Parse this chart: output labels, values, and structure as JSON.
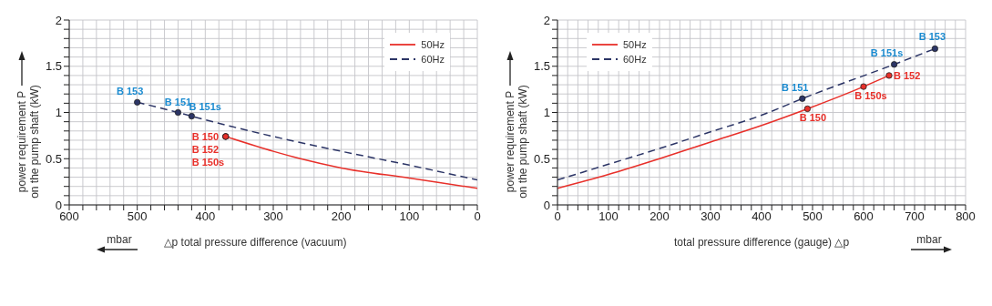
{
  "chart_data": [
    {
      "type": "line",
      "xlabel": "△p total pressure difference (vacuum)",
      "ylabel": "power requirement P\non the pump shaft (kW)",
      "xlim": [
        600,
        0
      ],
      "ylim": [
        0,
        2
      ],
      "grid": true,
      "legend": "top right",
      "xticks": [
        0,
        {
          "value": 20,
          "label": null
        },
        {
          "value": 40,
          "label": null
        },
        {
          "value": 60,
          "label": null
        },
        {
          "value": 80,
          "label": null
        },
        100,
        {
          "value": 120,
          "label": null
        },
        {
          "value": 140,
          "label": null
        },
        {
          "value": 160,
          "label": null
        },
        {
          "value": 180,
          "label": null
        },
        200,
        {
          "value": 220,
          "label": null
        },
        {
          "value": 240,
          "label": null
        },
        {
          "value": 260,
          "label": null
        },
        {
          "value": 280,
          "label": null
        },
        300,
        {
          "value": 320,
          "label": null
        },
        {
          "value": 340,
          "label": null
        },
        {
          "value": 360,
          "label": null
        },
        {
          "value": 380,
          "label": null
        },
        400,
        {
          "value": 420,
          "label": null
        },
        {
          "value": 440,
          "label": null
        },
        {
          "value": 460,
          "label": null
        },
        {
          "value": 480,
          "label": null
        },
        500,
        {
          "value": 520,
          "label": null
        },
        {
          "value": 540,
          "label": null
        },
        {
          "value": 560,
          "label": null
        },
        {
          "value": 580,
          "label": null
        },
        600
      ],
      "yticks": [
        0,
        {
          "value": 0.1,
          "label": null
        },
        {
          "value": 0.2,
          "label": null
        },
        {
          "value": 0.3,
          "label": null
        },
        {
          "value": 0.4,
          "label": null
        },
        0.5,
        {
          "value": 0.6,
          "label": null
        },
        {
          "value": 0.7,
          "label": null
        },
        {
          "value": 0.8,
          "label": null
        },
        {
          "value": 0.9,
          "label": null
        },
        1,
        {
          "value": 1.1,
          "label": null
        },
        {
          "value": 1.2,
          "label": null
        },
        {
          "value": 1.3,
          "label": null
        },
        {
          "value": 1.4,
          "label": null
        },
        1.5,
        {
          "value": 1.6,
          "label": null
        },
        {
          "value": 1.7,
          "label": null
        },
        {
          "value": 1.8,
          "label": null
        },
        {
          "value": 1.9,
          "label": null
        },
        2
      ],
      "series": [
        {
          "name": "50Hz",
          "color": "#e8302a",
          "line_style": "solid",
          "x": [
            370,
            300,
            260,
            200,
            100,
            0
          ],
          "values": [
            0.74,
            0.58,
            0.5,
            0.4,
            0.29,
            0.18
          ]
        },
        {
          "name": "60Hz",
          "color": "#2c3566",
          "line_style": "dashed",
          "x": [
            500,
            440,
            420,
            300,
            200,
            100,
            0
          ],
          "values": [
            1.11,
            1.0,
            0.96,
            0.74,
            0.58,
            0.43,
            0.27
          ]
        }
      ],
      "annotations": [
        {
          "text": "B 153",
          "x": 500,
          "y": 1.11
        },
        {
          "text": "B 151",
          "x": 440,
          "y": 1.0
        },
        {
          "text": "B 151s",
          "x": 420,
          "y": 0.96
        },
        {
          "text": "B 150",
          "x": 370,
          "y": 0.74
        },
        {
          "text": "B 152",
          "x": 370,
          "y": 0.74
        },
        {
          "text": "B 150s",
          "x": 370,
          "y": 0.74
        },
        "mbar"
      ]
    },
    {
      "type": "line",
      "xlabel": "total pressure difference (gauge) △p",
      "ylabel": "power requirement P\non the pump shaft (kW)",
      "xlim": [
        0,
        800
      ],
      "ylim": [
        0,
        2
      ],
      "grid": true,
      "legend": "top left",
      "xticks": [
        0,
        {
          "value": 20,
          "label": null
        },
        {
          "value": 40,
          "label": null
        },
        {
          "value": 60,
          "label": null
        },
        {
          "value": 80,
          "label": null
        },
        100,
        {
          "value": 120,
          "label": null
        },
        {
          "value": 140,
          "label": null
        },
        {
          "value": 160,
          "label": null
        },
        {
          "value": 180,
          "label": null
        },
        200,
        {
          "value": 220,
          "label": null
        },
        {
          "value": 240,
          "label": null
        },
        {
          "value": 260,
          "label": null
        },
        {
          "value": 280,
          "label": null
        },
        300,
        {
          "value": 320,
          "label": null
        },
        {
          "value": 340,
          "label": null
        },
        {
          "value": 360,
          "label": null
        },
        {
          "value": 380,
          "label": null
        },
        400,
        {
          "value": 420,
          "label": null
        },
        {
          "value": 440,
          "label": null
        },
        {
          "value": 460,
          "label": null
        },
        {
          "value": 480,
          "label": null
        },
        500,
        {
          "value": 520,
          "label": null
        },
        {
          "value": 540,
          "label": null
        },
        {
          "value": 560,
          "label": null
        },
        {
          "value": 580,
          "label": null
        },
        600,
        {
          "value": 620,
          "label": null
        },
        {
          "value": 640,
          "label": null
        },
        {
          "value": 660,
          "label": null
        },
        {
          "value": 680,
          "label": null
        },
        700,
        {
          "value": 720,
          "label": null
        },
        {
          "value": 740,
          "label": null
        },
        {
          "value": 760,
          "label": null
        },
        {
          "value": 780,
          "label": null
        },
        800
      ],
      "yticks": [
        0,
        {
          "value": 0.1,
          "label": null
        },
        {
          "value": 0.2,
          "label": null
        },
        {
          "value": 0.3,
          "label": null
        },
        {
          "value": 0.4,
          "label": null
        },
        0.5,
        {
          "value": 0.6,
          "label": null
        },
        {
          "value": 0.7,
          "label": null
        },
        {
          "value": 0.8,
          "label": null
        },
        {
          "value": 0.9,
          "label": null
        },
        1,
        {
          "value": 1.1,
          "label": null
        },
        {
          "value": 1.2,
          "label": null
        },
        {
          "value": 1.3,
          "label": null
        },
        {
          "value": 1.4,
          "label": null
        },
        1.5,
        {
          "value": 1.6,
          "label": null
        },
        {
          "value": 1.7,
          "label": null
        },
        {
          "value": 1.8,
          "label": null
        },
        {
          "value": 1.9,
          "label": null
        },
        2
      ],
      "series": [
        {
          "name": "50Hz",
          "color": "#e8302a",
          "line_style": "solid",
          "x": [
            0,
            100,
            200,
            300,
            400,
            490,
            600,
            650
          ],
          "values": [
            0.18,
            0.33,
            0.5,
            0.68,
            0.86,
            1.04,
            1.28,
            1.4
          ]
        },
        {
          "name": "60Hz",
          "color": "#2c3566",
          "line_style": "dashed",
          "x": [
            0,
            100,
            200,
            300,
            400,
            480,
            660,
            740
          ],
          "values": [
            0.27,
            0.44,
            0.61,
            0.79,
            0.97,
            1.15,
            1.52,
            1.69
          ]
        }
      ],
      "annotations": [
        {
          "text": "B 151",
          "x": 480,
          "y": 1.15
        },
        {
          "text": "B 150",
          "x": 490,
          "y": 1.04
        },
        {
          "text": "B 150s",
          "x": 600,
          "y": 1.28
        },
        {
          "text": "B 152",
          "x": 650,
          "y": 1.4
        },
        {
          "text": "B 151s",
          "x": 660,
          "y": 1.52
        },
        {
          "text": "B 153",
          "x": 740,
          "y": 1.69
        },
        "mbar"
      ]
    }
  ]
}
